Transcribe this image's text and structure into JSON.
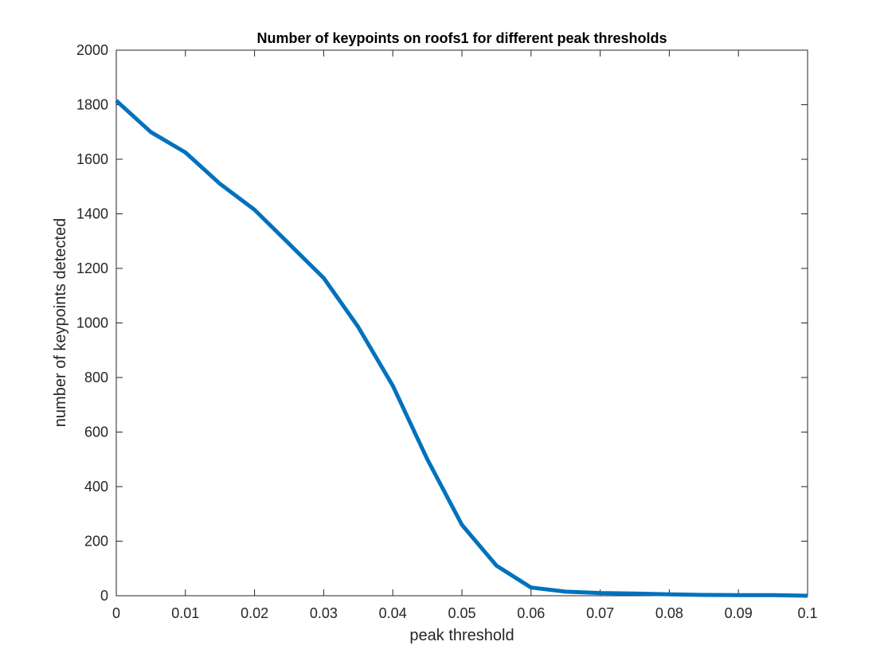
{
  "chart_data": {
    "type": "line",
    "title": "Number of keypoints on roofs1 for different peak thresholds",
    "xlabel": "peak threshold",
    "ylabel": "number of keypoints detected",
    "xlim": [
      0,
      0.1
    ],
    "ylim": [
      0,
      2000
    ],
    "xticks": [
      0,
      0.01,
      0.02,
      0.03,
      0.04,
      0.05,
      0.06,
      0.07,
      0.08,
      0.09,
      0.1
    ],
    "xtick_labels": [
      "0",
      "0.01",
      "0.02",
      "0.03",
      "0.04",
      "0.05",
      "0.06",
      "0.07",
      "0.08",
      "0.09",
      "0.1"
    ],
    "yticks": [
      0,
      200,
      400,
      600,
      800,
      1000,
      1200,
      1400,
      1600,
      1800,
      2000
    ],
    "ytick_labels": [
      "0",
      "200",
      "400",
      "600",
      "800",
      "1000",
      "1200",
      "1400",
      "1600",
      "1800",
      "2000"
    ],
    "grid": false,
    "series": [
      {
        "color": "#0072BD",
        "x": [
          0,
          0.005,
          0.01,
          0.015,
          0.02,
          0.025,
          0.03,
          0.035,
          0.04,
          0.045,
          0.05,
          0.055,
          0.06,
          0.065,
          0.07,
          0.075,
          0.08,
          0.085,
          0.09,
          0.095,
          0.1
        ],
        "y": [
          1815,
          1700,
          1625,
          1510,
          1415,
          1290,
          1165,
          985,
          770,
          500,
          260,
          110,
          30,
          15,
          10,
          8,
          5,
          3,
          2,
          2,
          0
        ]
      }
    ]
  }
}
